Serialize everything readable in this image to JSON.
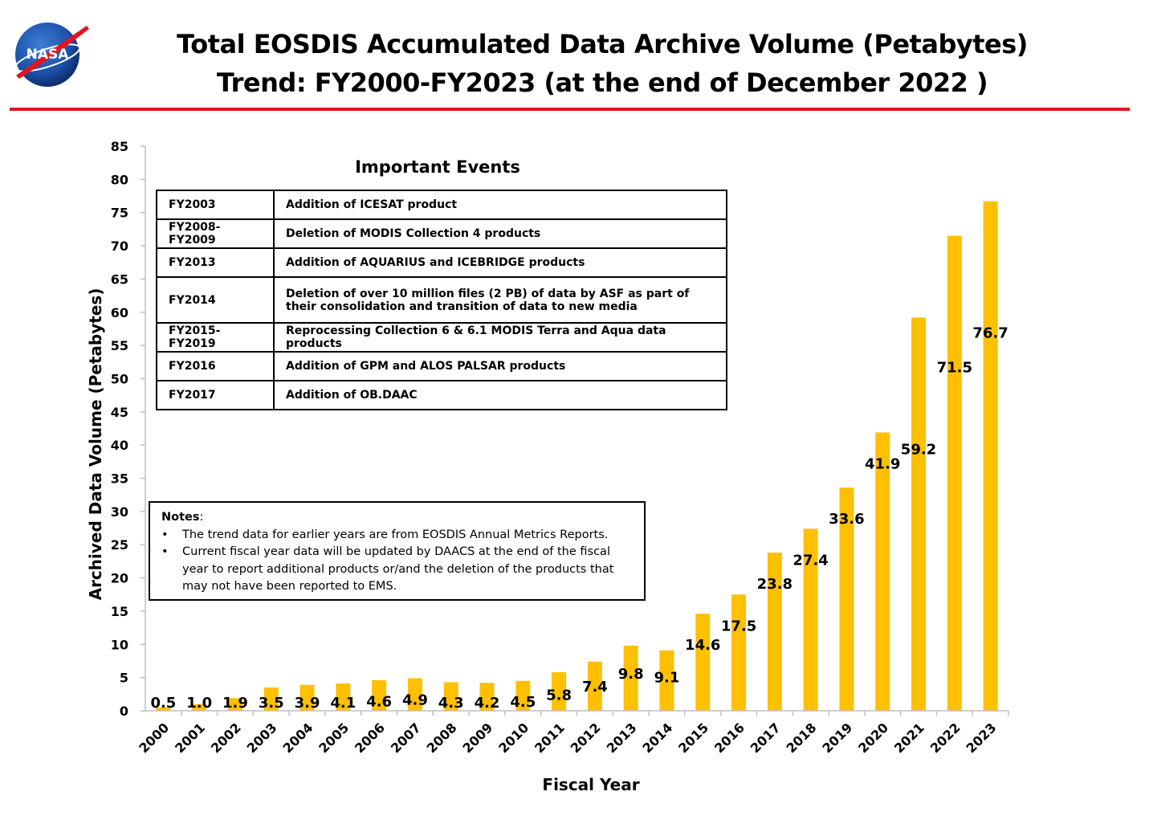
{
  "header": {
    "title_line1": "Total EOSDIS Accumulated Data Archive Volume (Petabytes)",
    "title_line2": "Trend: FY2000-FY2023 (at the end of December 2022 )",
    "logo_text": "NASA",
    "rule_color": "#e0161e"
  },
  "events": {
    "title": "Important Events",
    "rows": [
      {
        "year": "FY2003",
        "text": "Addition of ICESAT product"
      },
      {
        "year": "FY2008-FY2009",
        "text": "Deletion of  MODIS Collection 4 products"
      },
      {
        "year": "FY2013",
        "text": "Addition of AQUARIUS and ICEBRIDGE products"
      },
      {
        "year": "FY2014",
        "text": "Deletion of over 10 million files (2 PB) of data by ASF as part of their consolidation and transition of data to new media"
      },
      {
        "year": "FY2015-FY2019",
        "text": "Reprocessing  Collection 6 & 6.1 MODIS Terra and Aqua data products"
      },
      {
        "year": "FY2016",
        "text": "Addition of GPM and ALOS PALSAR products"
      },
      {
        "year": "FY2017",
        "text": "Addition of OB.DAAC"
      }
    ]
  },
  "notes": {
    "header": "Notes",
    "items": [
      "The trend data for earlier years are from EOSDIS Annual Metrics Reports.",
      "Current fiscal year data will be updated by DAACS at the end of the fiscal year to report additional products or/and the deletion of the products that may not have been reported to EMS."
    ]
  },
  "chart_data": {
    "type": "bar",
    "title": "Total EOSDIS Accumulated Data Archive Volume (Petabytes) Trend: FY2000-FY2023 (at the end of December 2022 )",
    "xlabel": "Fiscal Year",
    "ylabel": "Archived Data Volume (Petabytes)",
    "ylim": [
      0,
      85
    ],
    "yticks": [
      0,
      5,
      10,
      15,
      20,
      25,
      30,
      35,
      40,
      45,
      50,
      55,
      60,
      65,
      70,
      75,
      80,
      85
    ],
    "categories": [
      "2000",
      "2001",
      "2002",
      "2003",
      "2004",
      "2005",
      "2006",
      "2007",
      "2008",
      "2009",
      "2010",
      "2011",
      "2012",
      "2013",
      "2014",
      "2015",
      "2016",
      "2017",
      "2018",
      "2019",
      "2020",
      "2021",
      "2022",
      "2023"
    ],
    "values": [
      0.5,
      1.0,
      1.9,
      3.5,
      3.9,
      4.1,
      4.6,
      4.9,
      4.3,
      4.2,
      4.5,
      5.8,
      7.4,
      9.8,
      9.1,
      14.6,
      17.5,
      23.8,
      27.4,
      33.6,
      41.9,
      59.2,
      71.5,
      76.7
    ],
    "labels": [
      "0.5",
      "1.0",
      "1.9",
      "3.5",
      "3.9",
      "4.1",
      "4.6",
      "4.9",
      "4.3",
      "4.2",
      "4.5",
      "5.8",
      "7.4",
      "9.8",
      "9.1",
      "14.6",
      "17.5",
      "23.8",
      "27.4",
      "33.6",
      "41.9",
      "59.2",
      "71.5",
      "76.7"
    ],
    "bar_color": "#ffc000",
    "grid": false,
    "legend": "none"
  }
}
